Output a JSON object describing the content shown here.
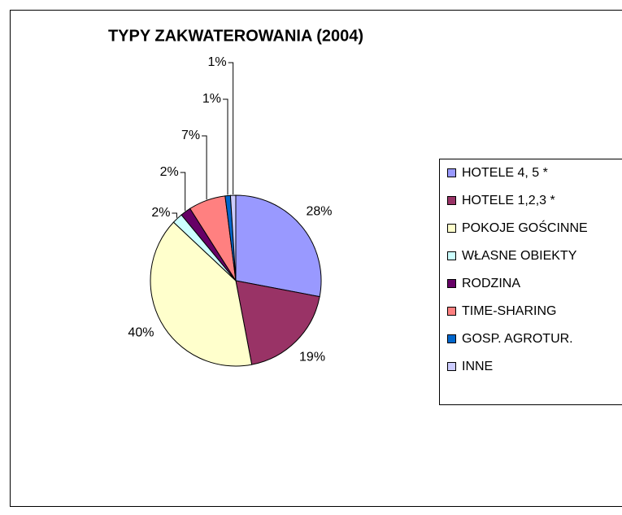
{
  "chart_data": {
    "type": "pie",
    "title": "TYPY ZAKWATEROWANIA (2004)",
    "categories": [
      "HOTELE 4, 5 *",
      "HOTELE 1,2,3 *",
      "POKOJE GOŚCINNE",
      "WŁASNE OBIEKTY",
      "RODZINA",
      "TIME-SHARING",
      "GOSP. AGROTUR.",
      "INNE"
    ],
    "values": [
      28,
      19,
      40,
      2,
      2,
      7,
      1,
      1
    ],
    "value_labels": [
      "28%",
      "19%",
      "40%",
      "2%",
      "2%",
      "7%",
      "1%",
      "1%"
    ],
    "colors": [
      "#9999ff",
      "#993366",
      "#ffffcc",
      "#ccffff",
      "#660066",
      "#ff8080",
      "#0066cc",
      "#ccccff"
    ],
    "legend": "right"
  }
}
